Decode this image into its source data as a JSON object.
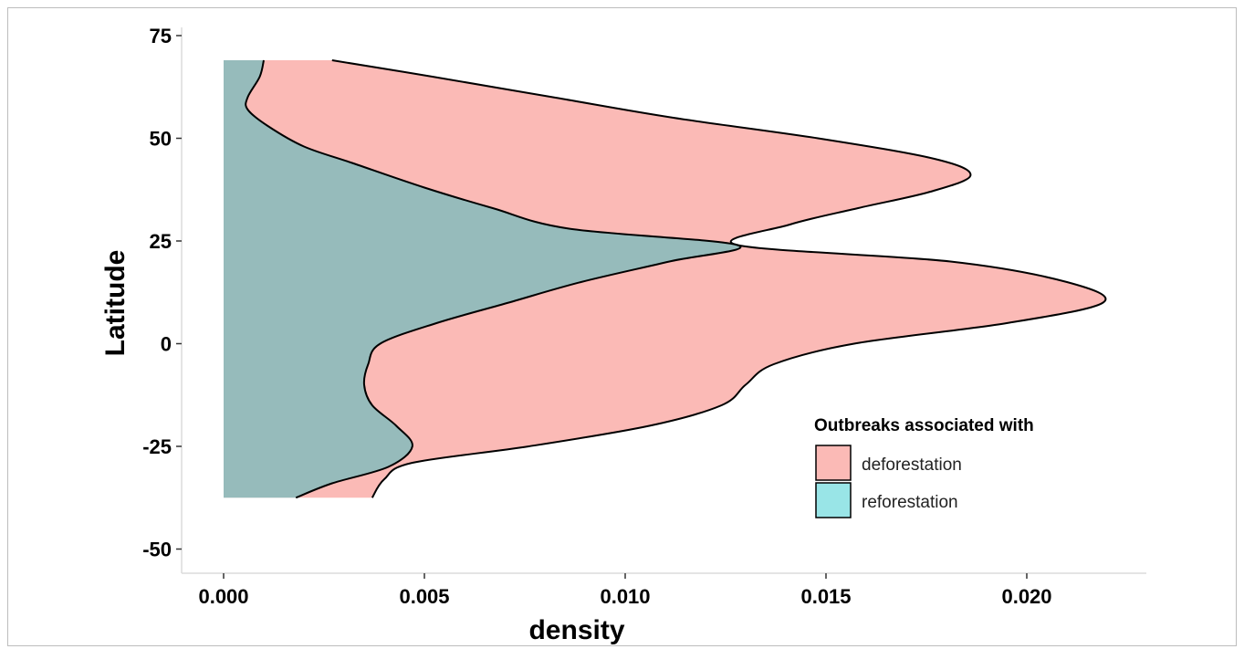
{
  "chart_data": {
    "type": "area",
    "orientation": "horizontal-density",
    "xlabel": "density",
    "ylabel": "Latitude",
    "xlim": [
      -0.0011,
      0.0229
    ],
    "ylim": [
      -55,
      75
    ],
    "x_ticks": [
      0.0,
      0.005,
      0.01,
      0.015,
      0.02
    ],
    "x_tick_labels": [
      "0.000",
      "0.005",
      "0.010",
      "0.015",
      "0.020"
    ],
    "y_ticks": [
      75,
      50,
      25,
      0,
      -25,
      -50
    ],
    "y_tick_labels": [
      "75",
      "50",
      "25",
      "0",
      "-25",
      "-50"
    ],
    "grid": false,
    "legend": {
      "title": "Outbreaks associated with",
      "position": "bottom-right",
      "entries": [
        "deforestation",
        "reforestation"
      ]
    },
    "series": [
      {
        "name": "deforestation",
        "color": "#F8766D",
        "fill_opacity": 0.5,
        "points": [
          {
            "lat": 69,
            "density": 0.0027
          },
          {
            "lat": 65,
            "density": 0.0052
          },
          {
            "lat": 60,
            "density": 0.0082
          },
          {
            "lat": 55,
            "density": 0.0112
          },
          {
            "lat": 50,
            "density": 0.0148
          },
          {
            "lat": 45,
            "density": 0.0177
          },
          {
            "lat": 41,
            "density": 0.0186
          },
          {
            "lat": 37,
            "density": 0.0176
          },
          {
            "lat": 33,
            "density": 0.0158
          },
          {
            "lat": 29,
            "density": 0.0141
          },
          {
            "lat": 24,
            "density": 0.0128
          },
          {
            "lat": 20,
            "density": 0.0181
          },
          {
            "lat": 15,
            "density": 0.021
          },
          {
            "lat": 10,
            "density": 0.0219
          },
          {
            "lat": 5,
            "density": 0.0195
          },
          {
            "lat": 0,
            "density": 0.0157
          },
          {
            "lat": -5,
            "density": 0.0137
          },
          {
            "lat": -10,
            "density": 0.013
          },
          {
            "lat": -15,
            "density": 0.0124
          },
          {
            "lat": -20,
            "density": 0.0106
          },
          {
            "lat": -25,
            "density": 0.0076
          },
          {
            "lat": -29,
            "density": 0.0047
          },
          {
            "lat": -33,
            "density": 0.004
          },
          {
            "lat": -37.5,
            "density": 0.0037
          }
        ]
      },
      {
        "name": "reforestation",
        "color": "#00BFC4",
        "fill_opacity": 0.4,
        "points": [
          {
            "lat": 69,
            "density": 0.001
          },
          {
            "lat": 65,
            "density": 0.0009
          },
          {
            "lat": 60,
            "density": 0.0006
          },
          {
            "lat": 57,
            "density": 0.0006
          },
          {
            "lat": 53,
            "density": 0.0011
          },
          {
            "lat": 48,
            "density": 0.002
          },
          {
            "lat": 44,
            "density": 0.0032
          },
          {
            "lat": 38,
            "density": 0.005
          },
          {
            "lat": 33,
            "density": 0.0067
          },
          {
            "lat": 28,
            "density": 0.0086
          },
          {
            "lat": 24,
            "density": 0.0128
          },
          {
            "lat": 20,
            "density": 0.0111
          },
          {
            "lat": 15,
            "density": 0.0089
          },
          {
            "lat": 10,
            "density": 0.0071
          },
          {
            "lat": 5,
            "density": 0.0053
          },
          {
            "lat": 0,
            "density": 0.0039
          },
          {
            "lat": -5,
            "density": 0.0036
          },
          {
            "lat": -10,
            "density": 0.0035
          },
          {
            "lat": -15,
            "density": 0.0037
          },
          {
            "lat": -20,
            "density": 0.0043
          },
          {
            "lat": -25,
            "density": 0.0047
          },
          {
            "lat": -30,
            "density": 0.0041
          },
          {
            "lat": -34,
            "density": 0.0027
          },
          {
            "lat": -37.5,
            "density": 0.0018
          }
        ]
      }
    ]
  }
}
